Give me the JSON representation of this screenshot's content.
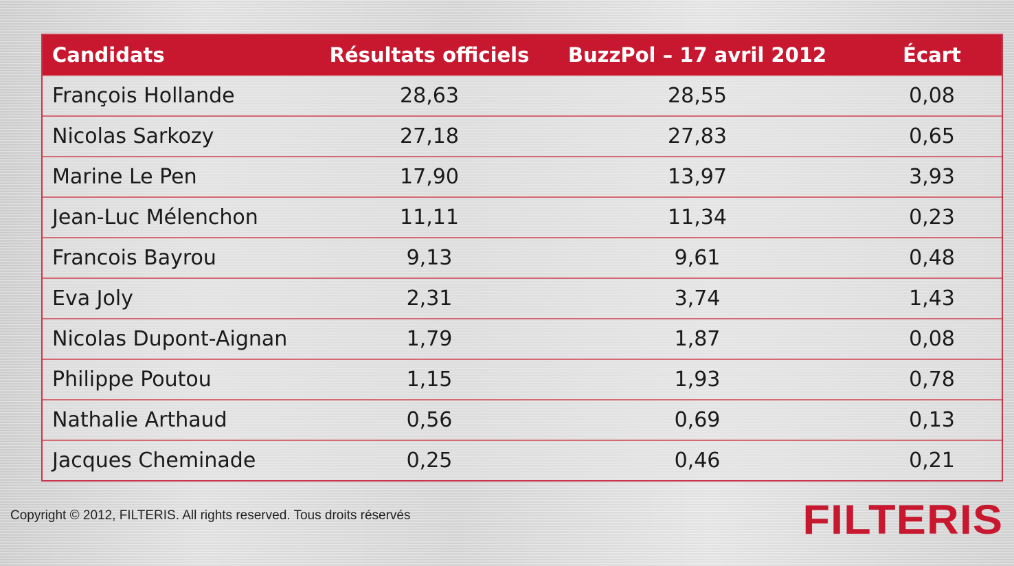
{
  "chart_data": {
    "type": "table",
    "columns": [
      "Candidats",
      "Résultats officiels",
      "BuzzPol – 17 avril 2012",
      "Écart"
    ],
    "rows": [
      {
        "name": "François Hollande",
        "official": "28,63",
        "buzzpol": "28,55",
        "gap": "0,08"
      },
      {
        "name": "Nicolas Sarkozy",
        "official": "27,18",
        "buzzpol": "27,83",
        "gap": "0,65"
      },
      {
        "name": "Marine Le Pen",
        "official": "17,90",
        "buzzpol": "13,97",
        "gap": "3,93"
      },
      {
        "name": "Jean-Luc Mélenchon",
        "official": "11,11",
        "buzzpol": "11,34",
        "gap": "0,23"
      },
      {
        "name": "Francois Bayrou",
        "official": "9,13",
        "buzzpol": "9,61",
        "gap": "0,48"
      },
      {
        "name": "Eva Joly",
        "official": "2,31",
        "buzzpol": "3,74",
        "gap": "1,43"
      },
      {
        "name": "Nicolas Dupont-Aignan",
        "official": "1,79",
        "buzzpol": "1,87",
        "gap": "0,08"
      },
      {
        "name": "Philippe Poutou",
        "official": "1,15",
        "buzzpol": "1,93",
        "gap": "0,78"
      },
      {
        "name": "Nathalie Arthaud",
        "official": "0,56",
        "buzzpol": "0,69",
        "gap": "0,13"
      },
      {
        "name": "Jacques Cheminade",
        "official": "0,25",
        "buzzpol": "0,46",
        "gap": "0,21"
      }
    ]
  },
  "footer": {
    "copyright": "Copyright © 2012, FILTERIS. All rights reserved. Tous droits réservés",
    "logo": "FILTERIS"
  },
  "colors": {
    "header_bg": "#c8182f",
    "row_border": "#d46a76",
    "logo": "#c8182f"
  }
}
